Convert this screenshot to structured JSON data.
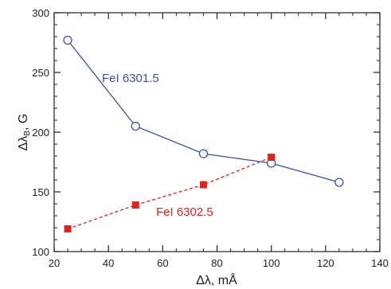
{
  "chart_data": {
    "type": "line",
    "xlabel": "Δλ, mÅ",
    "ylabel": "Δλ",
    "ylabel_subscript": "B",
    "ylabel_suffix": ", G",
    "xlim": [
      20,
      140
    ],
    "ylim": [
      100,
      300
    ],
    "x_ticks": [
      20,
      40,
      60,
      80,
      100,
      120,
      140
    ],
    "y_ticks": [
      100,
      150,
      200,
      250,
      300
    ],
    "x_minor_step": 5,
    "y_minor_step": 10,
    "grid": false,
    "series": [
      {
        "name": "FeI 6301.5",
        "color": "#3a4fb0",
        "marker": "open-circle",
        "line_style": "solid",
        "x": [
          25,
          50,
          75,
          100,
          125
        ],
        "y": [
          277,
          205,
          182,
          174,
          158
        ]
      },
      {
        "name": "FeI 6302.5",
        "color": "#e8201c",
        "marker": "filled-square",
        "line_style": "dashed",
        "x": [
          25,
          50,
          75,
          100
        ],
        "y": [
          119,
          139,
          156,
          179
        ]
      }
    ]
  }
}
